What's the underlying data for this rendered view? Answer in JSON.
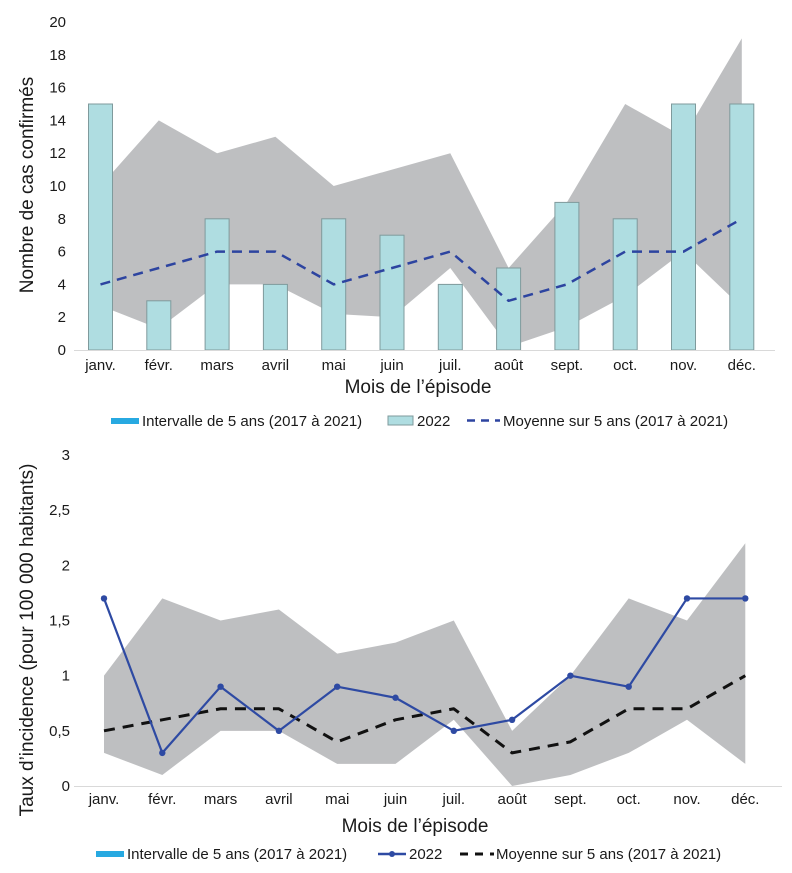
{
  "colors": {
    "band": "#bebfc1",
    "bar_fill": "#afdde1",
    "bar_stroke": "#7f9a9c",
    "mean_top": "#2d44a0",
    "line_2022": "#2e4aa3",
    "mean_bottom": "#111111",
    "legend_band": "#27a9e1",
    "axis": "#d9d9d9"
  },
  "chart_data": [
    {
      "type": "bar",
      "title": "",
      "xlabel": "Mois de l’épisode",
      "ylabel": "Nombre de cas confirmés",
      "ylim": [
        0,
        20
      ],
      "yticks": [
        "0",
        "2",
        "4",
        "6",
        "8",
        "10",
        "12",
        "14",
        "16",
        "18",
        "20"
      ],
      "ytick_values": [
        0,
        2,
        4,
        6,
        8,
        10,
        12,
        14,
        16,
        18,
        20
      ],
      "categories": [
        "janv.",
        "févr.",
        "mars",
        "avril",
        "mai",
        "juin",
        "juil.",
        "août",
        "sept.",
        "oct.",
        "nov.",
        "déc."
      ],
      "grid": false,
      "legend_position": "bottom",
      "series": [
        {
          "name": "Intervalle de 5 ans (2017 à 2021)",
          "kind": "band",
          "upper": [
            10,
            14,
            12,
            13,
            10,
            11,
            12,
            5,
            9,
            15,
            13,
            19
          ],
          "lower": [
            2.7,
            1.3,
            4,
            4,
            2.2,
            2,
            5,
            0.2,
            1.4,
            3.3,
            6,
            2.6
          ]
        },
        {
          "name": "2022",
          "kind": "bar",
          "values": [
            15,
            3,
            8,
            4,
            8,
            7,
            4,
            5,
            9,
            8,
            15,
            15
          ]
        },
        {
          "name": "Moyenne sur 5 ans (2017 à 2021)",
          "kind": "dashed-line",
          "values": [
            4,
            5,
            6,
            6,
            4,
            5,
            6,
            3,
            4,
            6,
            6,
            8
          ]
        }
      ]
    },
    {
      "type": "line",
      "title": "",
      "xlabel": "Mois de l’épisode",
      "ylabel": "Taux d’incidence (pour 100 000 habitants)",
      "ylim": [
        0,
        3
      ],
      "yticks": [
        "0",
        "0,5",
        "1",
        "1,5",
        "2",
        "2,5",
        "3"
      ],
      "ytick_values": [
        0,
        0.5,
        1,
        1.5,
        2,
        2.5,
        3
      ],
      "categories": [
        "janv.",
        "févr.",
        "mars",
        "avril",
        "mai",
        "juin",
        "juil.",
        "août",
        "sept.",
        "oct.",
        "nov.",
        "déc."
      ],
      "grid": false,
      "legend_position": "bottom",
      "series": [
        {
          "name": "Intervalle de 5 ans (2017 à 2021)",
          "kind": "band",
          "upper": [
            1.0,
            1.7,
            1.5,
            1.6,
            1.2,
            1.3,
            1.5,
            0.5,
            1.0,
            1.7,
            1.5,
            2.2
          ],
          "lower": [
            0.3,
            0.1,
            0.5,
            0.5,
            0.2,
            0.2,
            0.6,
            0.0,
            0.1,
            0.3,
            0.6,
            0.2
          ]
        },
        {
          "name": "2022",
          "kind": "line-markers",
          "values": [
            1.7,
            0.3,
            0.9,
            0.5,
            0.9,
            0.8,
            0.5,
            0.6,
            1.0,
            0.9,
            1.7,
            1.7
          ]
        },
        {
          "name": "Moyenne sur 5 ans (2017 à 2021)",
          "kind": "dashed-line",
          "values": [
            0.5,
            0.6,
            0.7,
            0.7,
            0.4,
            0.6,
            0.7,
            0.3,
            0.4,
            0.7,
            0.7,
            1.0
          ]
        }
      ]
    }
  ]
}
